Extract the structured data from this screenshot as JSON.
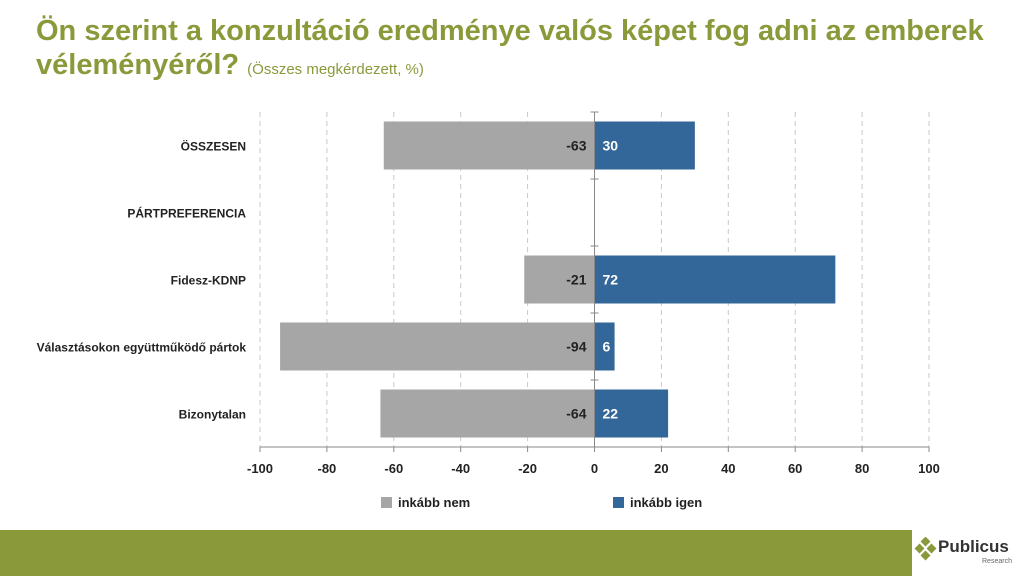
{
  "title": {
    "main": "Ön szerint a konzultáció eredménye valós képet fog adni az emberek véleményéről?",
    "sub": "(Összes megkérdezett, %)"
  },
  "legend": {
    "no_label": "inkább nem",
    "yes_label": "inkább igen"
  },
  "colors": {
    "no": "#a6a6a6",
    "yes": "#336699",
    "accent": "#8a9a3b"
  },
  "logo": {
    "name": "Publicus",
    "sub": "Research",
    "icon": "diamond-cluster-icon"
  },
  "chart_data": {
    "type": "bar",
    "orientation": "horizontal",
    "stacked": "diverging",
    "categories": [
      "ÖSSZESEN",
      "PÁRTPREFERENCIA",
      "Fidesz-KDNP",
      "Választásokon együttműködő pártok",
      "Bizonytalan"
    ],
    "series": [
      {
        "name": "inkább nem",
        "values": [
          -63,
          null,
          -21,
          -94,
          -64
        ],
        "color": "#a6a6a6"
      },
      {
        "name": "inkább igen",
        "values": [
          30,
          null,
          72,
          6,
          22
        ],
        "color": "#336699"
      }
    ],
    "xlim": [
      -100,
      100
    ],
    "xticks": [
      -100,
      -80,
      -60,
      -40,
      -20,
      0,
      20,
      40,
      60,
      80,
      100
    ],
    "grid": "vertical-dashed",
    "legend_position": "bottom"
  }
}
